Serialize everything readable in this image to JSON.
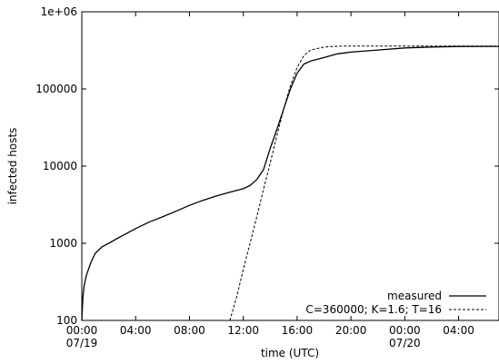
{
  "chart_data": {
    "type": "line",
    "title": "",
    "xlabel": "time (UTC)",
    "ylabel": "infected hosts",
    "y_scale": "log",
    "ylim": [
      100,
      1000000
    ],
    "xlim": [
      "2001-07-19 00:00",
      "2001-07-20 07:00"
    ],
    "grid": false,
    "legend_position": "bottom-right",
    "x_ticks": [
      {
        "x": "2001-07-19 00:00",
        "label": "00:00",
        "sublabel": "07/19"
      },
      {
        "x": "2001-07-19 04:00",
        "label": "04:00",
        "sublabel": ""
      },
      {
        "x": "2001-07-19 08:00",
        "label": "08:00",
        "sublabel": ""
      },
      {
        "x": "2001-07-19 12:00",
        "label": "12:00",
        "sublabel": ""
      },
      {
        "x": "2001-07-19 16:00",
        "label": "16:00",
        "sublabel": ""
      },
      {
        "x": "2001-07-19 20:00",
        "label": "20:00",
        "sublabel": ""
      },
      {
        "x": "2001-07-20 00:00",
        "label": "00:00",
        "sublabel": "07/20"
      },
      {
        "x": "2001-07-20 04:00",
        "label": "04:00",
        "sublabel": ""
      }
    ],
    "y_ticks": [
      {
        "y": 100,
        "label": "100"
      },
      {
        "y": 1000,
        "label": "1000"
      },
      {
        "y": 10000,
        "label": "10000"
      },
      {
        "y": 100000,
        "label": "100000"
      },
      {
        "y": 1000000,
        "label": "1e+06"
      }
    ],
    "series": [
      {
        "name": "measured",
        "style": "solid",
        "color": "#000000",
        "points": [
          [
            "2001-07-19 00:00",
            100
          ],
          [
            "2001-07-19 00:05",
            200
          ],
          [
            "2001-07-19 00:10",
            280
          ],
          [
            "2001-07-19 00:20",
            380
          ],
          [
            "2001-07-19 00:40",
            560
          ],
          [
            "2001-07-19 01:00",
            740
          ],
          [
            "2001-07-19 01:30",
            900
          ],
          [
            "2001-07-19 02:00",
            1000
          ],
          [
            "2001-07-19 02:30",
            1120
          ],
          [
            "2001-07-19 03:00",
            1250
          ],
          [
            "2001-07-19 04:00",
            1550
          ],
          [
            "2001-07-19 05:00",
            1880
          ],
          [
            "2001-07-19 06:00",
            2200
          ],
          [
            "2001-07-19 07:00",
            2600
          ],
          [
            "2001-07-19 08:00",
            3100
          ],
          [
            "2001-07-19 09:00",
            3600
          ],
          [
            "2001-07-19 10:00",
            4100
          ],
          [
            "2001-07-19 11:00",
            4600
          ],
          [
            "2001-07-19 12:00",
            5100
          ],
          [
            "2001-07-19 12:30",
            5600
          ],
          [
            "2001-07-19 13:00",
            6700
          ],
          [
            "2001-07-19 13:30",
            9000
          ],
          [
            "2001-07-19 14:00",
            17000
          ],
          [
            "2001-07-19 14:30",
            30000
          ],
          [
            "2001-07-19 15:00",
            55000
          ],
          [
            "2001-07-19 15:30",
            100000
          ],
          [
            "2001-07-19 16:00",
            160000
          ],
          [
            "2001-07-19 16:30",
            210000
          ],
          [
            "2001-07-19 17:00",
            230000
          ],
          [
            "2001-07-19 18:00",
            255000
          ],
          [
            "2001-07-19 19:00",
            285000
          ],
          [
            "2001-07-19 20:00",
            300000
          ],
          [
            "2001-07-19 22:00",
            320000
          ],
          [
            "2001-07-20 00:00",
            340000
          ],
          [
            "2001-07-20 02:00",
            350000
          ],
          [
            "2001-07-20 04:00",
            355000
          ],
          [
            "2001-07-20 07:00",
            356000
          ]
        ]
      },
      {
        "name": "C=360000; K=1.6; T=16",
        "style": "dashed",
        "color": "#000000",
        "points": [
          [
            "2001-07-19 11:00",
            100
          ],
          [
            "2001-07-19 11:30",
            200
          ],
          [
            "2001-07-19 12:00",
            460
          ],
          [
            "2001-07-19 12:30",
            1000
          ],
          [
            "2001-07-19 13:00",
            2200
          ],
          [
            "2001-07-19 13:30",
            5000
          ],
          [
            "2001-07-19 14:00",
            11000
          ],
          [
            "2001-07-19 14:30",
            25000
          ],
          [
            "2001-07-19 15:00",
            55000
          ],
          [
            "2001-07-19 15:30",
            110000
          ],
          [
            "2001-07-19 16:00",
            190000
          ],
          [
            "2001-07-19 16:30",
            270000
          ],
          [
            "2001-07-19 17:00",
            320000
          ],
          [
            "2001-07-19 18:00",
            350000
          ],
          [
            "2001-07-19 19:00",
            358000
          ],
          [
            "2001-07-19 20:00",
            360000
          ],
          [
            "2001-07-20 07:00",
            360000
          ]
        ]
      }
    ]
  }
}
